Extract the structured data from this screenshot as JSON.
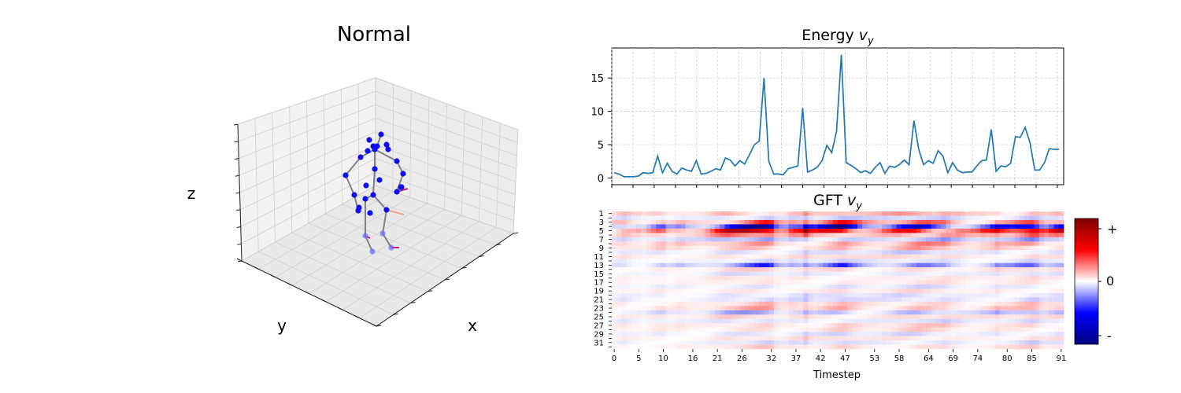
{
  "panel3d": {
    "title": "Normal",
    "xlabel": "x",
    "ylabel": "y",
    "zlabel": "z"
  },
  "chart_data": [
    {
      "type": "line",
      "title_main": "Energy ",
      "title_sub": "v",
      "title_subscript": "y",
      "color": "#1f77b4",
      "xlim": [
        0,
        92
      ],
      "ylim": [
        -1,
        19.5
      ],
      "yticks": [
        0,
        5,
        10,
        15
      ],
      "grid": true,
      "x": [
        0,
        1,
        2,
        3,
        4,
        5,
        6,
        7,
        8,
        9,
        10,
        11,
        12,
        13,
        14,
        15,
        16,
        17,
        18,
        19,
        20,
        21,
        22,
        23,
        24,
        25,
        26,
        27,
        28,
        29,
        30,
        31,
        32,
        33,
        34,
        35,
        36,
        37,
        38,
        39,
        40,
        41,
        42,
        43,
        44,
        45,
        46,
        47,
        48,
        49,
        50,
        51,
        52,
        53,
        54,
        55,
        56,
        57,
        58,
        59,
        60,
        61,
        62,
        63,
        64,
        65,
        66,
        67,
        68,
        69,
        70,
        71,
        72,
        73,
        74,
        75,
        76,
        77,
        78,
        79,
        80,
        81,
        82,
        83,
        84,
        85,
        86,
        87,
        88,
        89,
        90,
        91,
        92
      ],
      "y": [
        0.8,
        0.6,
        0.2,
        0.2,
        0.2,
        0.3,
        0.8,
        0.7,
        0.8,
        3.3,
        0.8,
        2.2,
        1.0,
        0.6,
        1.5,
        1.2,
        1.0,
        2.6,
        0.6,
        0.7,
        1.0,
        1.4,
        1.2,
        3.0,
        2.7,
        1.8,
        2.6,
        2.1,
        3.5,
        5.0,
        5.5,
        15.0,
        2.5,
        0.6,
        0.6,
        0.5,
        1.4,
        1.6,
        1.8,
        10.5,
        0.9,
        1.2,
        1.6,
        2.6,
        4.9,
        3.8,
        7.0,
        18.5,
        2.3,
        1.9,
        1.4,
        0.8,
        1.1,
        0.7,
        1.6,
        2.3,
        0.7,
        1.8,
        1.6,
        2.0,
        2.7,
        2.0,
        8.6,
        4.3,
        2.0,
        2.6,
        2.2,
        4.1,
        3.3,
        0.8,
        2.3,
        1.2,
        0.8,
        0.9,
        0.9,
        1.8,
        2.6,
        2.7,
        7.3,
        1.0,
        1.8,
        1.7,
        2.2,
        6.2,
        6.1,
        7.6,
        5.3,
        1.2,
        1.2,
        2.3,
        4.4,
        4.3,
        4.3
      ]
    },
    {
      "type": "heatmap",
      "title_main": "GFT ",
      "title_sub": "v",
      "title_subscript": "y",
      "xlabel": "Timestep",
      "xtick_labels": [
        "0",
        "5",
        "10",
        "16",
        "21",
        "26",
        "32",
        "37",
        "42",
        "47",
        "53",
        "58",
        "64",
        "69",
        "74",
        "80",
        "85",
        "91"
      ],
      "ytick_labels": [
        "1",
        "3",
        "5",
        "7",
        "9",
        "11",
        "13",
        "15",
        "17",
        "19",
        "21",
        "23",
        "25",
        "27",
        "29",
        "31"
      ],
      "rows": 32,
      "cols": 92,
      "colorbar": {
        "top": "+",
        "mid": "0",
        "bottom": "-",
        "colors": [
          "#00007f",
          "#0000ff",
          "#ffffff",
          "#ff0000",
          "#7f0000"
        ]
      },
      "row_amplitude": [
        0.25,
        0.15,
        0.45,
        0.85,
        0.85,
        0.35,
        0.22,
        0.25,
        0.18,
        0.12,
        0.12,
        0.1,
        0.38,
        0.1,
        0.08,
        0.08,
        0.07,
        0.08,
        0.08,
        0.1,
        0.12,
        0.14,
        0.18,
        0.2,
        0.12,
        0.1,
        0.12,
        0.1,
        0.1,
        0.1,
        0.1,
        0.1
      ],
      "column_profile": [
        0.3,
        0.4,
        0.5,
        0.4,
        0.3,
        0.3,
        0.2,
        0.3,
        0.4,
        0.5,
        0.5,
        0.3,
        0.3,
        0.4,
        0.4,
        0.3,
        0.3,
        0.3,
        0.3,
        0.4,
        0.5,
        0.6,
        0.7,
        0.8,
        0.8,
        0.8,
        0.85,
        0.9,
        0.9,
        0.95,
        1.0,
        1.0,
        0.9,
        0.5,
        0.4,
        0.4,
        0.6,
        0.6,
        0.6,
        1.0,
        0.6,
        0.5,
        0.6,
        0.7,
        0.8,
        0.9,
        1.0,
        1.0,
        0.8,
        0.7,
        0.6,
        0.5,
        0.5,
        0.5,
        0.5,
        0.6,
        0.6,
        0.7,
        0.8,
        0.8,
        0.9,
        0.95,
        1.0,
        0.9,
        0.9,
        0.8,
        0.8,
        0.9,
        0.8,
        0.6,
        0.6,
        0.5,
        0.4,
        0.4,
        0.4,
        0.5,
        0.5,
        0.6,
        0.8,
        0.6,
        0.6,
        0.6,
        0.7,
        0.8,
        0.9,
        1.0,
        0.9,
        0.6,
        0.5,
        0.6,
        0.7,
        0.7
      ],
      "sign_pattern": [
        1,
        -1,
        1,
        -1,
        1,
        1,
        -1,
        1,
        1,
        -1,
        1,
        -1,
        -1,
        1,
        -1,
        1,
        1,
        -1,
        1,
        -1,
        -1,
        1,
        1,
        -1,
        1,
        -1,
        1,
        1,
        -1,
        1,
        -1,
        1
      ]
    }
  ]
}
